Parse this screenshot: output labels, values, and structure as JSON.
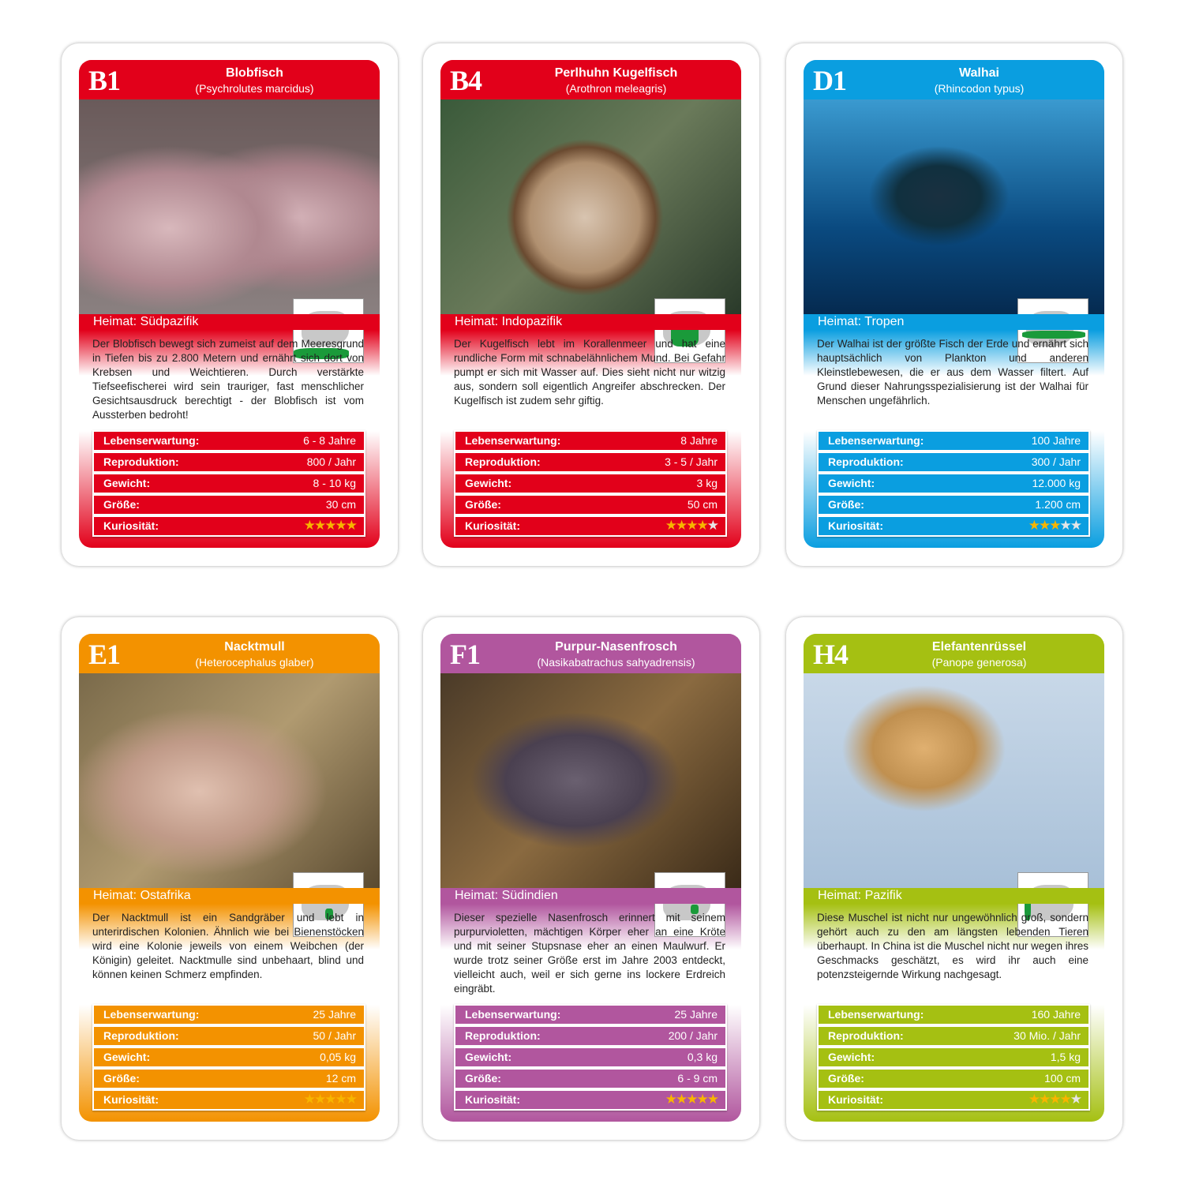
{
  "labels": {
    "heimat_prefix": "Heimat: ",
    "lebenserwartung": "Lebenserwartung:",
    "reproduktion": "Reproduktion:",
    "gewicht": "Gewicht:",
    "groesse": "Größe:",
    "kuriositaet": "Kuriosität:"
  },
  "star_colors": {
    "filled": "#f7b500",
    "empty": "#e6e6e6"
  },
  "cards": [
    {
      "code": "B1",
      "name": "Blobfisch",
      "latin": "(Psychrolutes marcidus)",
      "color": "#e2001a",
      "heimat": "Südpazifik",
      "photo": "blobfish-photo",
      "description": "Der Blobfisch bewegt sich zumeist auf dem Meeresgrund in Tiefen bis zu 2.800 Metern und ernährt sich dort von Krebsen und Weichtieren. Durch verstärkte Tiefseefischerei wird sein trauriger, fast menschlicher Gesichtsausdruck berechtigt - der Blobfisch ist vom Aussterben bedroht!",
      "stats": {
        "lebenserwartung": "6 - 8 Jahre",
        "reproduktion": "800 / Jahr",
        "gewicht": "8 - 10 kg",
        "groesse": "30 cm",
        "kuriositaet": 5
      }
    },
    {
      "code": "B4",
      "name": "Perlhuhn Kugelfisch",
      "latin": "(Arothron meleagris)",
      "color": "#e2001a",
      "heimat": "Indopazifik",
      "photo": "pufferfish-photo",
      "description": "Der Kugelfisch lebt im Korallenmeer und hat eine rundliche Form mit schnabelähnlichem Mund. Bei Gefahr pumpt er sich mit Wasser auf. Dies sieht nicht nur witzig aus, sondern soll eigentlich Angreifer abschrecken. Der Kugelfisch ist zudem sehr giftig.",
      "stats": {
        "lebenserwartung": "8 Jahre",
        "reproduktion": "3 - 5 / Jahr",
        "gewicht": "3 kg",
        "groesse": "50 cm",
        "kuriositaet": 4
      }
    },
    {
      "code": "D1",
      "name": "Walhai",
      "latin": "(Rhincodon typus)",
      "color": "#0a9ee0",
      "heimat": "Tropen",
      "photo": "whale-shark-photo",
      "description": "Der Walhai ist der größte Fisch der Erde und ernährt sich hauptsächlich von Plankton und anderen Kleinstlebewesen, die er aus dem Wasser filtert. Auf Grund dieser Nahrungsspezialisierung ist der Walhai für Menschen ungefährlich.",
      "stats": {
        "lebenserwartung": "100 Jahre",
        "reproduktion": "300 / Jahr",
        "gewicht": "12.000 kg",
        "groesse": "1.200 cm",
        "kuriositaet": 3
      }
    },
    {
      "code": "E1",
      "name": "Nacktmull",
      "latin": "(Heterocephalus glaber)",
      "color": "#f39200",
      "heimat": "Ostafrika",
      "photo": "naked-mole-rat-photo",
      "description": "Der Nacktmull ist ein Sandgräber und lebt in unterirdischen Kolonien. Ähnlich wie bei Bienenstöcken wird eine Kolonie jeweils von einem Weibchen (der Königin) geleitet. Nacktmulle sind unbehaart, blind und können keinen Schmerz empfinden.",
      "stats": {
        "lebenserwartung": "25 Jahre",
        "reproduktion": "50 / Jahr",
        "gewicht": "0,05 kg",
        "groesse": "12 cm",
        "kuriositaet": 5
      }
    },
    {
      "code": "F1",
      "name": "Purpur-Nasenfrosch",
      "latin": "(Nasikabatrachus sahyadrensis)",
      "color": "#b1569e",
      "heimat": "Südindien",
      "photo": "purple-frog-photo",
      "description": "Dieser spezielle Nasenfrosch erinnert mit seinem purpurvioletten, mächtigen Körper eher an eine Kröte und mit seiner Stupsnase eher an einen Maulwurf. Er wurde trotz seiner Größe erst im Jahre 2003 entdeckt, vielleicht auch, weil er sich gerne ins lockere Erdreich eingräbt.",
      "stats": {
        "lebenserwartung": "25 Jahre",
        "reproduktion": "200 / Jahr",
        "gewicht": "0,3 kg",
        "groesse": "6 - 9 cm",
        "kuriositaet": 5
      }
    },
    {
      "code": "H4",
      "name": "Elefantenrüssel",
      "latin": "(Panope generosa)",
      "color": "#a5c012",
      "heimat": "Pazifik",
      "photo": "geoduck-photo",
      "description": "Diese Muschel ist nicht nur ungewöhnlich groß, sondern gehört auch zu den am längsten lebenden Tieren überhaupt. In China ist die Muschel nicht nur wegen ihres Geschmacks geschätzt, es wird ihr auch eine potenzsteigernde Wirkung nachgesagt.",
      "stats": {
        "lebenserwartung": "160 Jahre",
        "reproduktion": "30 Mio. / Jahr",
        "gewicht": "1,5 kg",
        "groesse": "100 cm",
        "kuriositaet": 4
      }
    }
  ]
}
